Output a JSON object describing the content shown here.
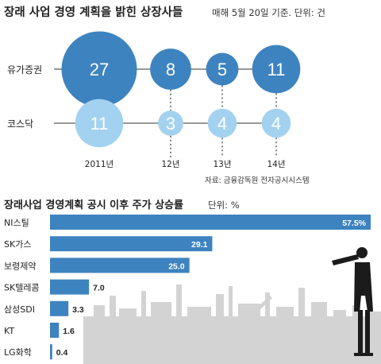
{
  "chart_data": [
    {
      "type": "bubble",
      "title": "장래 사업 경영 계획을 밝힌 상장사들",
      "subtitle": "매해 5월 20일 기준. 단위: 건",
      "categories": [
        "2011년",
        "12년",
        "13년",
        "14년"
      ],
      "series": [
        {
          "name": "유가증권",
          "values": [
            27,
            8,
            5,
            11
          ],
          "color": "#3d83bf"
        },
        {
          "name": "코스닥",
          "values": [
            11,
            3,
            4,
            4
          ],
          "color": "#a3d2f0"
        }
      ],
      "source": "자료: 금융감독원 전자공시시스템"
    },
    {
      "type": "bar",
      "orientation": "horizontal",
      "title": "장래사업 경영계획 공시 이후 주가 상승률",
      "subtitle": "단위: %",
      "categories": [
        "NI스틸",
        "SK가스",
        "보령제약",
        "SK텔레콤",
        "삼성SDI",
        "KT",
        "LG화학"
      ],
      "values": [
        57.5,
        29.1,
        25.0,
        7.0,
        3.3,
        1.6,
        0.4
      ],
      "value_labels": [
        "57.5%",
        "29.1",
        "25.0",
        "7.0",
        "3.3",
        "1.6",
        "0.4"
      ],
      "xlim": [
        0,
        57.5
      ],
      "bar_color": "#3d83bf"
    }
  ]
}
